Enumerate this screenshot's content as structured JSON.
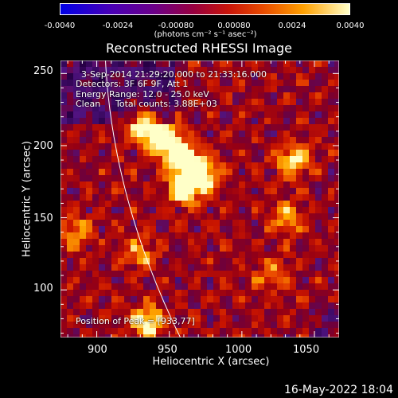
{
  "colorbar": {
    "ticks": [
      "-0.0040",
      "-0.0024",
      "-0.00080",
      "0.00080",
      "0.0024",
      "0.0040"
    ],
    "units": "(photons cm⁻² s⁻¹ asec⁻²)"
  },
  "chart_data": {
    "type": "heatmap",
    "title": "Reconstructed RHESSI Image",
    "xlabel": "Heliocentric X (arcsec)",
    "ylabel": "Heliocentric Y (arcsec)",
    "xlim": [
      875,
      1067
    ],
    "ylim": [
      67,
      259
    ],
    "xticks": [
      900,
      950,
      1000,
      1050
    ],
    "yticks": [
      100,
      150,
      200,
      250
    ],
    "colorscale_range": [
      -0.004,
      0.004
    ],
    "annotations": {
      "time_range": "3-Sep-2014 21:29:20.000 to 21:33:16.000",
      "detectors": "Detectors: 3F 6F 9F, Att 1",
      "energy_range": "Energy Range: 12.0 - 25.0 keV",
      "method": "Clean",
      "total_counts": "Total counts: 3.88E+03",
      "peak_position": "Position of Peak = [933,77]"
    },
    "bright_sources": [
      {
        "x": 932,
        "y": 215,
        "level": 1.0
      },
      {
        "x": 945,
        "y": 205,
        "level": 0.9
      },
      {
        "x": 955,
        "y": 195,
        "level": 0.95
      },
      {
        "x": 965,
        "y": 185,
        "level": 1.0
      },
      {
        "x": 960,
        "y": 170,
        "level": 0.9
      },
      {
        "x": 975,
        "y": 178,
        "level": 0.8
      },
      {
        "x": 1035,
        "y": 190,
        "level": 0.8
      },
      {
        "x": 1030,
        "y": 150,
        "level": 0.6
      },
      {
        "x": 885,
        "y": 140,
        "level": 0.55
      },
      {
        "x": 935,
        "y": 77,
        "level": 0.95
      },
      {
        "x": 930,
        "y": 125,
        "level": 0.55
      },
      {
        "x": 1020,
        "y": 110,
        "level": 0.5
      }
    ]
  },
  "footer": "16-May-2022 18:04"
}
